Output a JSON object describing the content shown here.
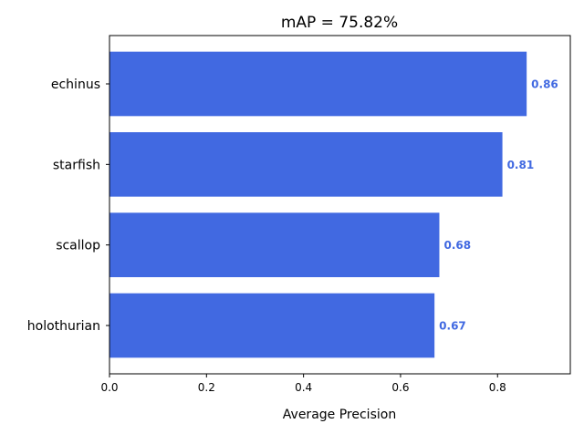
{
  "chart_data": {
    "type": "bar",
    "orientation": "horizontal",
    "title": "mAP = 75.82%",
    "xlabel": "Average Precision",
    "ylabel": "",
    "categories": [
      "holothurian",
      "scallop",
      "starfish",
      "echinus"
    ],
    "values": [
      0.67,
      0.68,
      0.81,
      0.86
    ],
    "value_labels": [
      "0.67",
      "0.68",
      "0.81",
      "0.86"
    ],
    "xlim": [
      0,
      0.95
    ],
    "xticks": [
      0.0,
      0.2,
      0.4,
      0.6,
      0.8
    ],
    "xtick_labels": [
      "0.0",
      "0.2",
      "0.4",
      "0.6",
      "0.8"
    ],
    "bar_color": "#4169e1",
    "label_color": "#4169e1",
    "grid": false,
    "legend": "none"
  }
}
